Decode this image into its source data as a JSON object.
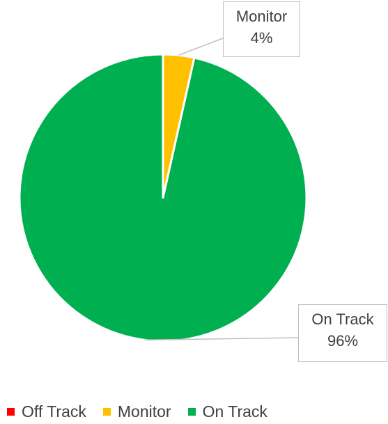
{
  "chart_data": {
    "type": "pie",
    "title": "",
    "categories": [
      "Off Track",
      "Monitor",
      "On Track"
    ],
    "values": [
      0,
      3.5,
      96.5
    ],
    "colors": [
      "#ff0000",
      "#ffc000",
      "#00b050"
    ],
    "data_labels": [
      {
        "category": "Monitor",
        "name": "Monitor",
        "value": "4%"
      },
      {
        "category": "On Track",
        "name": "On Track",
        "value": "96%"
      }
    ],
    "legend_position": "bottom",
    "start_angle": "12 o'clock, clockwise"
  },
  "legend": {
    "items": [
      {
        "label": "Off Track",
        "color": "#ff0000"
      },
      {
        "label": "Monitor",
        "color": "#ffc000"
      },
      {
        "label": "On Track",
        "color": "#00b050"
      }
    ]
  }
}
